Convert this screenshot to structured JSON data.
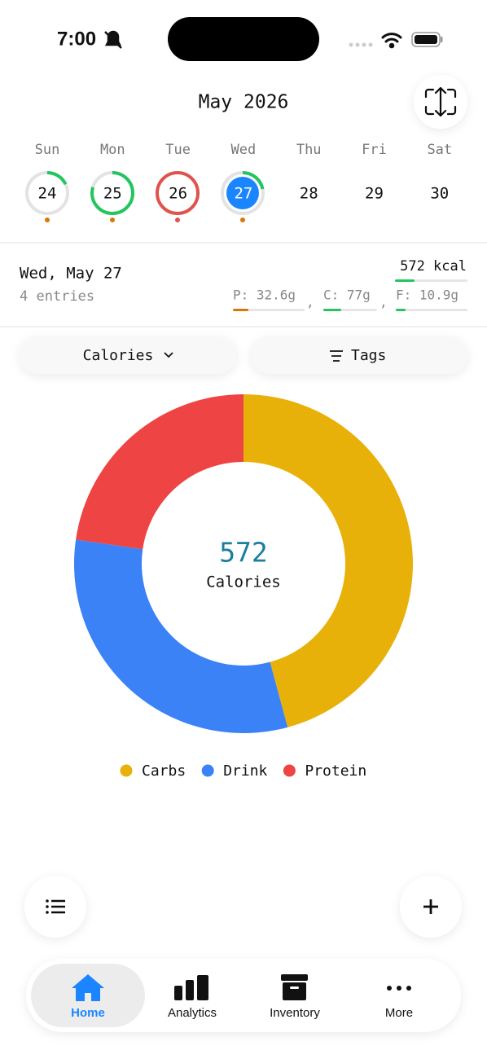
{
  "status_bar": {
    "time": "7:00"
  },
  "header": {
    "title": "May 2026"
  },
  "week": {
    "days": [
      {
        "name": "Sun",
        "date": "24"
      },
      {
        "name": "Mon",
        "date": "25"
      },
      {
        "name": "Tue",
        "date": "26"
      },
      {
        "name": "Wed",
        "date": "27"
      },
      {
        "name": "Thu",
        "date": "28"
      },
      {
        "name": "Fri",
        "date": "29"
      },
      {
        "name": "Sat",
        "date": "30"
      }
    ]
  },
  "summary": {
    "date": "Wed, May 27",
    "entries": "4 entries",
    "kcal": "572 kcal",
    "separator": ",",
    "protein": "P: 32.6g",
    "carbs": "C: 77g",
    "fat": "F: 10.9g"
  },
  "filters": {
    "metric": "Calories",
    "tags": "Tags"
  },
  "chart_data": {
    "type": "donut",
    "center_value": 572,
    "center_label": "Calories",
    "categories": [
      "Carbs",
      "Drink",
      "Protein"
    ],
    "values": [
      262,
      180,
      130
    ],
    "colors": [
      "#e8b10a",
      "#3b82f6",
      "#ef4444"
    ]
  },
  "tabs": [
    "Home",
    "Analytics",
    "Inventory",
    "More"
  ]
}
